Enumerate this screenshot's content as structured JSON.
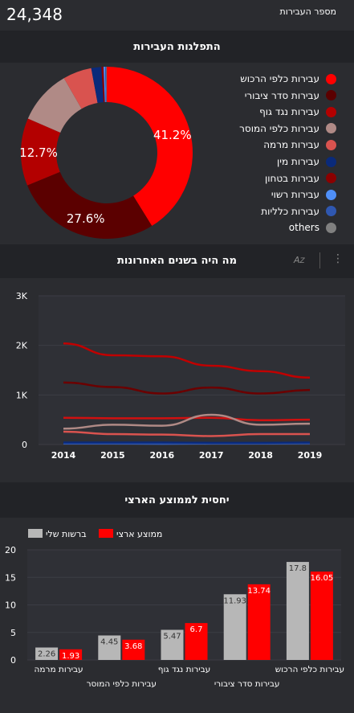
{
  "kpi": {
    "label": "מספר העבירות",
    "value": "24,348"
  },
  "pie_section": {
    "title": "התפלגות העבירות"
  },
  "line_section": {
    "title": "מה היה בשנים האחרונות",
    "sort_icon": "sort-az-icon",
    "menu_icon": "more-vert-icon"
  },
  "bar_section": {
    "title": "יחסית לממוצע הארצי"
  },
  "colors": {
    "page_bg": "#2b2c30",
    "header_bg": "#222327",
    "plot_bg": "#2f3036",
    "accent_red": "#ff0000",
    "gray_bar": "#b7b7b7"
  },
  "chart_data": [
    {
      "type": "pie",
      "variant": "donut",
      "legend_position": "right",
      "slices": [
        {
          "label": "עבירות כלפי הרכוש",
          "value": 41.2,
          "display": "41.2%",
          "color": "#ff0000"
        },
        {
          "label": "עבירות סדר ציבורי",
          "value": 27.6,
          "display": "27.6%",
          "color": "#5b0000"
        },
        {
          "label": "עבירות נגד גוף",
          "value": 12.7,
          "display": "12.7%",
          "color": "#b30000"
        },
        {
          "label": "עבירות כלפי המוסר",
          "value": 10.2,
          "display": "",
          "color": "#b08a86"
        },
        {
          "label": "עבירות מרמה",
          "value": 5.4,
          "display": "",
          "color": "#d9534f"
        },
        {
          "label": "עבירות מין",
          "value": 1.9,
          "display": "",
          "color": "#0a2a7a"
        },
        {
          "label": "עבירות בטחון",
          "value": 0.4,
          "display": "",
          "color": "#8b0000"
        },
        {
          "label": "עבירות רשוי",
          "value": 0.3,
          "display": "",
          "color": "#4f8ff7"
        },
        {
          "label": "עבירות כלליות",
          "value": 0.2,
          "display": "",
          "color": "#2f57b0"
        },
        {
          "label": "others",
          "value": 0.1,
          "display": "",
          "color": "#808080"
        }
      ]
    },
    {
      "type": "line",
      "x": [
        "2014",
        "2015",
        "2016",
        "2017",
        "2018",
        "2019"
      ],
      "y_ticks": [
        "0",
        "1K",
        "2K",
        "3K"
      ],
      "ylim": [
        0,
        3000
      ],
      "grid": true,
      "series": [
        {
          "color": "#c00000",
          "values": [
            2040,
            1800,
            1780,
            1590,
            1480,
            1350
          ]
        },
        {
          "color": "#6b0000",
          "values": [
            1250,
            1160,
            1030,
            1150,
            1030,
            1100
          ]
        },
        {
          "color": "#d01010",
          "values": [
            540,
            530,
            530,
            540,
            490,
            500
          ]
        },
        {
          "color": "#b08a86",
          "values": [
            320,
            400,
            380,
            600,
            400,
            420
          ]
        },
        {
          "color": "#d9534f",
          "values": [
            260,
            210,
            200,
            170,
            210,
            210
          ]
        },
        {
          "color": "#2f57b0",
          "values": [
            20,
            20,
            15,
            20,
            20,
            25
          ]
        },
        {
          "color": "#0a2a7a",
          "values": [
            40,
            40,
            40,
            35,
            35,
            40
          ]
        }
      ]
    },
    {
      "type": "bar",
      "legend": [
        {
          "name": "ממוצע ארצי",
          "color": "#ff0000"
        },
        {
          "name": "ברשות שלי",
          "color": "#b7b7b7"
        }
      ],
      "categories": [
        "עבירות כלפי הרכוש",
        "עבירות סדר ציבורי",
        "עבירות נגד גוף",
        "עבירות כלפי המוסר",
        "עבירות מרמה"
      ],
      "series": [
        {
          "name": "ברשות שלי",
          "color": "#b7b7b7",
          "values": [
            17.8,
            11.93,
            5.47,
            4.45,
            2.26
          ],
          "labels": [
            "17.8",
            "11.93",
            "5.47",
            "4.45",
            "2.26"
          ]
        },
        {
          "name": "ממוצע ארצי",
          "color": "#ff0000",
          "values": [
            16.05,
            13.74,
            6.7,
            3.68,
            1.93
          ],
          "labels": [
            "16.05",
            "13.74",
            "6.7",
            "3.68",
            "1.93"
          ]
        }
      ],
      "y_ticks": [
        "0",
        "5",
        "10",
        "15",
        "20"
      ],
      "ylim": [
        0,
        20
      ],
      "grid": true
    }
  ]
}
